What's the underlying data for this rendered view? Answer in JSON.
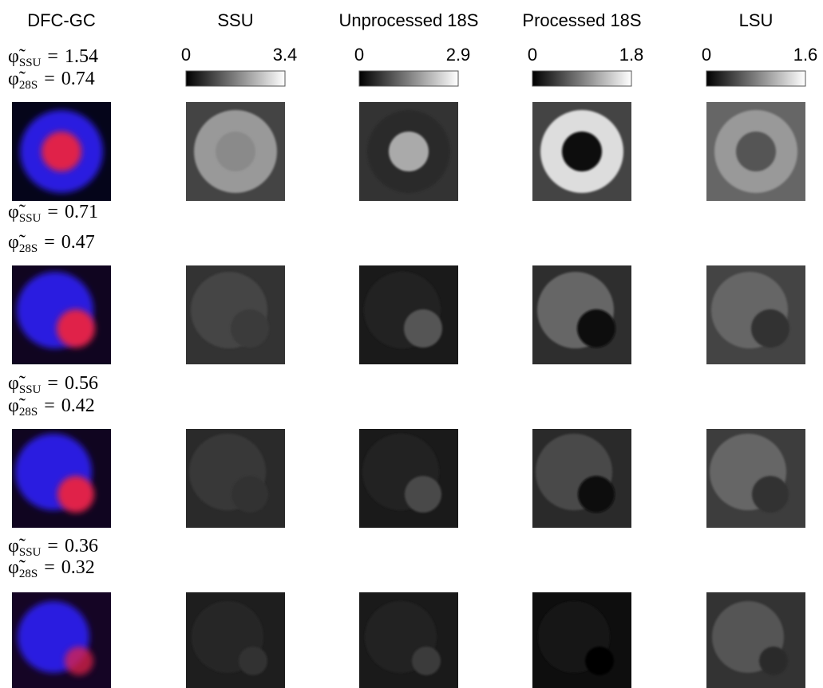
{
  "columns": [
    "DFC-GC",
    "SSU",
    "Unprocessed 18S",
    "Processed 18S",
    "LSU"
  ],
  "colorbars": [
    {
      "min": 0,
      "max": 3.4
    },
    {
      "min": 0,
      "max": 2.9
    },
    {
      "min": 0,
      "max": 1.8
    },
    {
      "min": 0,
      "max": 1.6
    }
  ],
  "row_label": {
    "symbol": "φ̃",
    "sub_ssu": "SSU",
    "sub_28s": "28S",
    "equals": "="
  },
  "rows": [
    {
      "phi_ssu": 1.54,
      "phi_28s": 0.74
    },
    {
      "phi_ssu": 0.71,
      "phi_28s": 0.47
    },
    {
      "phi_ssu": 0.56,
      "phi_28s": 0.42
    },
    {
      "phi_ssu": 0.36,
      "phi_28s": 0.32
    }
  ]
}
